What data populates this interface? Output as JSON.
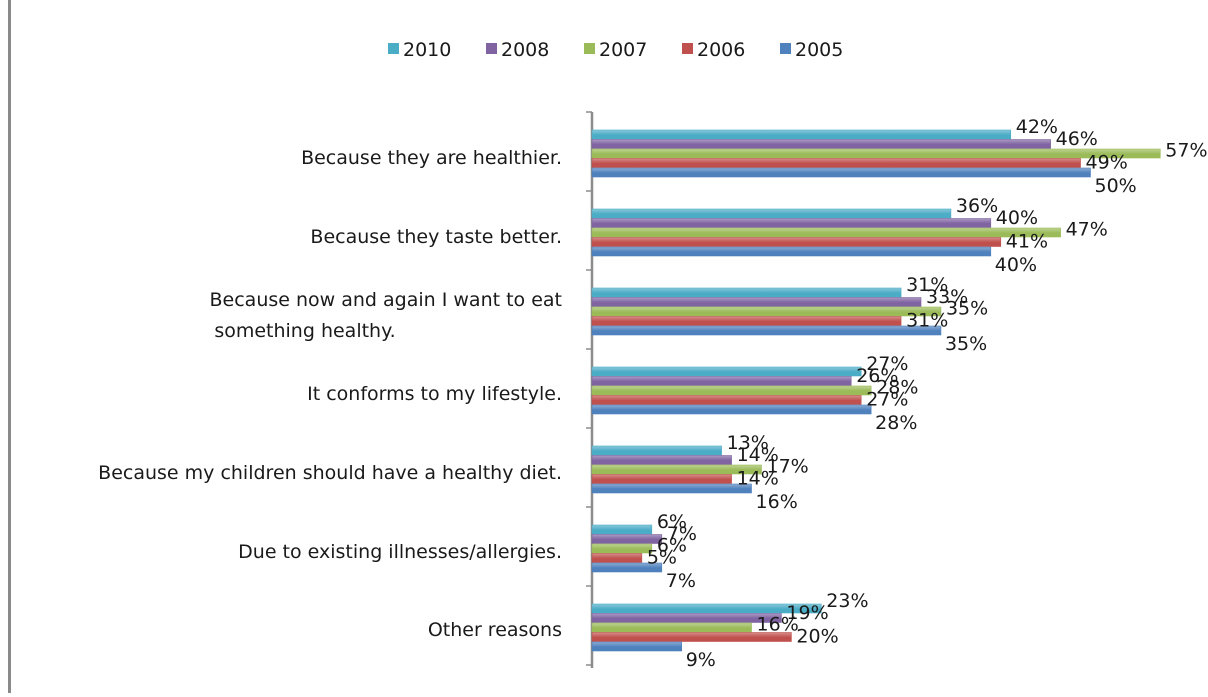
{
  "chart_data": {
    "type": "bar",
    "orientation": "horizontal",
    "title": "",
    "xlabel": "",
    "ylabel": "",
    "xlim": [
      0,
      57
    ],
    "grid": false,
    "legend_position": "top",
    "categories": [
      "Because they are healthier.",
      "Because they taste better.",
      "Because now and again I want to eat something healthy.",
      "It conforms to my lifestyle.",
      "Because my children should have a healthy diet.",
      "Due to existing illnesses/allergies.",
      "Other reasons"
    ],
    "series": [
      {
        "name": "2010",
        "color": "#4bacc6",
        "values": [
          42,
          36,
          31,
          27,
          13,
          6,
          23
        ],
        "labels": [
          "42%",
          "36%",
          "31%",
          "27%",
          "13%",
          "6%",
          "23%"
        ]
      },
      {
        "name": "2008",
        "color": "#8064a2",
        "values": [
          46,
          40,
          33,
          26,
          14,
          7,
          19
        ],
        "labels": [
          "46%",
          "40%",
          "33%",
          "26%",
          "14%",
          "7%",
          "19%"
        ]
      },
      {
        "name": "2007",
        "color": "#9bbb59",
        "values": [
          57,
          47,
          35,
          28,
          17,
          6,
          16
        ],
        "labels": [
          "57%",
          "47%",
          "35%",
          "28%",
          "17%",
          "6%",
          "16%"
        ]
      },
      {
        "name": "2006",
        "color": "#c0504d",
        "values": [
          49,
          41,
          31,
          27,
          14,
          5,
          20
        ],
        "labels": [
          "49%",
          "41%",
          "31%",
          "27%",
          "14%",
          "5%",
          "20%"
        ]
      },
      {
        "name": "2005",
        "color": "#4f81bd",
        "values": [
          50,
          40,
          35,
          28,
          16,
          7,
          9
        ],
        "labels": [
          "50%",
          "40%",
          "35%",
          "28%",
          "16%",
          "7%",
          "9%"
        ]
      }
    ]
  }
}
